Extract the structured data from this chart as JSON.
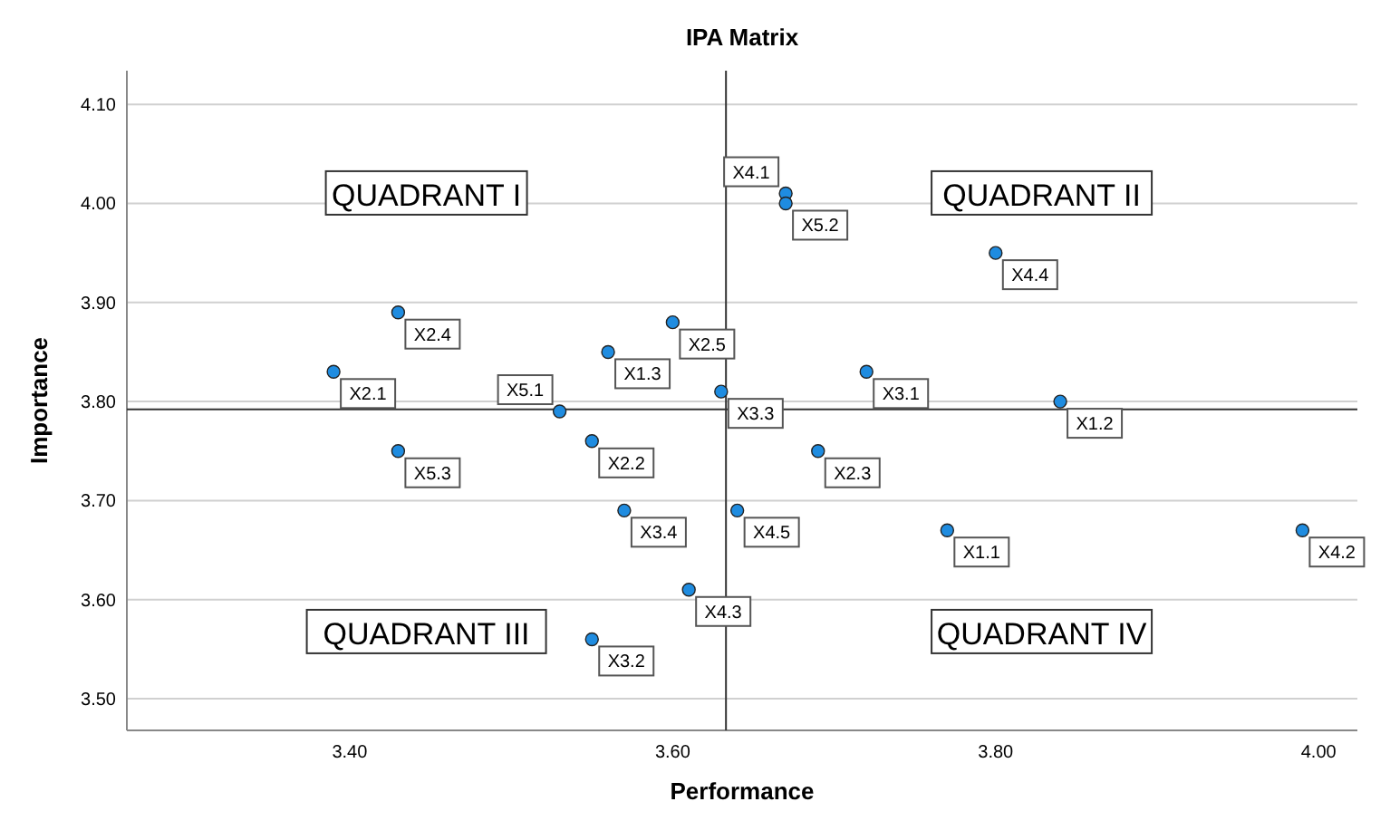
{
  "chart_data": {
    "type": "scatter",
    "title": "IPA Matrix",
    "xlabel": "Performance",
    "ylabel": "Importance",
    "x": [
      3.39,
      3.43,
      3.43,
      3.53,
      3.55,
      3.56,
      3.57,
      3.6,
      3.61,
      3.55,
      3.63,
      3.67,
      3.67,
      3.64,
      3.69,
      3.72,
      3.8,
      3.84,
      3.77,
      3.99
    ],
    "series": [
      {
        "color": "#1f8ce0",
        "values": [
          3.83,
          3.89,
          3.75,
          3.79,
          3.76,
          3.85,
          3.69,
          3.88,
          3.61,
          3.56,
          3.81,
          4.01,
          4.0,
          3.69,
          3.75,
          3.83,
          3.95,
          3.8,
          3.67,
          3.67
        ]
      }
    ],
    "xlim": [
      3.262,
      4.024
    ],
    "xticks": [
      {
        "value": 3.4,
        "label": "3.40"
      },
      {
        "value": 3.6,
        "label": "3.60"
      },
      {
        "value": 3.8,
        "label": "3.80"
      },
      {
        "value": 4.0,
        "label": "4.00"
      }
    ],
    "ylim": [
      3.468,
      4.134
    ],
    "yticks": [
      {
        "value": 3.5,
        "label": "3.50"
      },
      {
        "value": 3.6,
        "label": "3.60"
      },
      {
        "value": 3.7,
        "label": "3.70"
      },
      {
        "value": 3.8,
        "label": "3.80"
      },
      {
        "value": 3.9,
        "label": "3.90"
      },
      {
        "value": 4.0,
        "label": "4.00"
      },
      {
        "value": 4.1,
        "label": "4.10"
      }
    ],
    "grid": "y",
    "marker": "circle",
    "ref_lines": [
      {
        "axis": "x",
        "value": 3.633,
        "color": "#333333"
      },
      {
        "axis": "y",
        "value": 3.792,
        "color": "#333333"
      }
    ],
    "annotations": [
      "QUADRANT I",
      "QUADRANT II",
      "QUADRANT III",
      "QUADRANT IV",
      {
        "text": "X2.1",
        "x": 3.39,
        "y": 3.83
      },
      {
        "text": "X2.4",
        "x": 3.43,
        "y": 3.89
      },
      {
        "text": "X5.3",
        "x": 3.43,
        "y": 3.75
      },
      {
        "text": "X5.1",
        "x": 3.53,
        "y": 3.79
      },
      {
        "text": "X2.2",
        "x": 3.55,
        "y": 3.76
      },
      {
        "text": "X1.3",
        "x": 3.56,
        "y": 3.85
      },
      {
        "text": "X3.4",
        "x": 3.57,
        "y": 3.69
      },
      {
        "text": "X2.5",
        "x": 3.6,
        "y": 3.88
      },
      {
        "text": "X4.3",
        "x": 3.61,
        "y": 3.61
      },
      {
        "text": "X3.2",
        "x": 3.55,
        "y": 3.56
      },
      {
        "text": "X3.3",
        "x": 3.63,
        "y": 3.81
      },
      {
        "text": "X4.1",
        "x": 3.67,
        "y": 4.01
      },
      {
        "text": "X5.2",
        "x": 3.67,
        "y": 4.0
      },
      {
        "text": "X4.5",
        "x": 3.64,
        "y": 3.69
      },
      {
        "text": "X2.3",
        "x": 3.69,
        "y": 3.75
      },
      {
        "text": "X3.1",
        "x": 3.72,
        "y": 3.83
      },
      {
        "text": "X4.4",
        "x": 3.8,
        "y": 3.95
      },
      {
        "text": "X1.2",
        "x": 3.84,
        "y": 3.8
      },
      {
        "text": "X1.1",
        "x": 3.77,
        "y": 3.67
      },
      {
        "text": "X4.2",
        "x": 3.99,
        "y": 3.67
      }
    ]
  }
}
